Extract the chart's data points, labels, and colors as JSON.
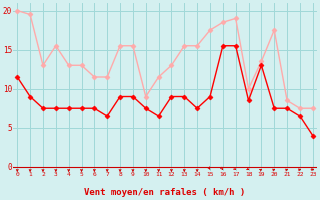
{
  "hours": [
    0,
    1,
    2,
    3,
    4,
    5,
    6,
    7,
    8,
    9,
    10,
    11,
    12,
    13,
    14,
    15,
    16,
    17,
    18,
    19,
    20,
    21,
    22,
    23
  ],
  "wind_mean": [
    11.5,
    9,
    7.5,
    7.5,
    7.5,
    7.5,
    7.5,
    6.5,
    9,
    9,
    7.5,
    6.5,
    9,
    9,
    7.5,
    9,
    15.5,
    15.5,
    8.5,
    13,
    7.5,
    7.5,
    6.5,
    4
  ],
  "wind_gust": [
    20,
    19.5,
    13,
    15.5,
    13,
    13,
    11.5,
    11.5,
    15.5,
    15.5,
    9,
    11.5,
    13,
    15.5,
    15.5,
    17.5,
    18.5,
    19,
    10,
    13.5,
    17.5,
    8.5,
    7.5,
    7.5
  ],
  "mean_color": "#ff0000",
  "gust_color": "#ffaaaa",
  "bg_color": "#d4f0f0",
  "grid_color": "#a0d8d8",
  "xlabel": "Vent moyen/en rafales ( km/h )",
  "xlabel_color": "#dd0000",
  "ylabel_color": "#dd0000",
  "yticks": [
    0,
    5,
    10,
    15,
    20
  ],
  "ylim": [
    -0.5,
    21
  ],
  "xlim": [
    -0.3,
    23.3
  ],
  "wind_dir": [
    180,
    180,
    180,
    180,
    180,
    180,
    180,
    180,
    180,
    180,
    180,
    180,
    180,
    180,
    180,
    160,
    150,
    140,
    130,
    50,
    60,
    60,
    70,
    90
  ]
}
